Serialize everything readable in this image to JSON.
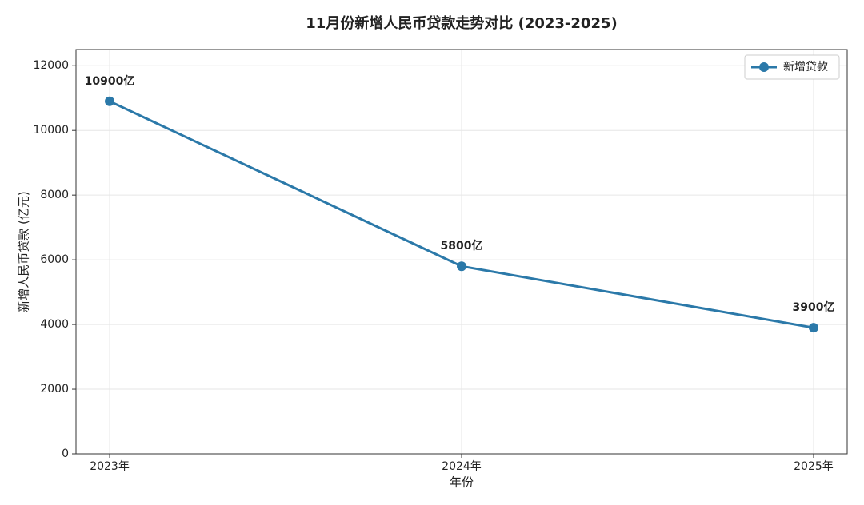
{
  "chart_data": {
    "type": "line",
    "title": "11月份新增人民币贷款走势对比 (2023-2025)",
    "x_label": "年份",
    "y_label": "新增人民币贷款 (亿元)",
    "categories": [
      "2023年",
      "2024年",
      "2025年"
    ],
    "series": [
      {
        "name": "新增贷款",
        "color": "#2b79a9",
        "values": [
          10900,
          5800,
          3900
        ],
        "value_labels": [
          "10900亿",
          "5800亿",
          "3900亿"
        ]
      }
    ],
    "ylim": [
      0,
      12500
    ],
    "yticks": [
      0,
      2000,
      4000,
      6000,
      8000,
      10000,
      12000
    ],
    "grid": true,
    "legend": "upper right"
  }
}
